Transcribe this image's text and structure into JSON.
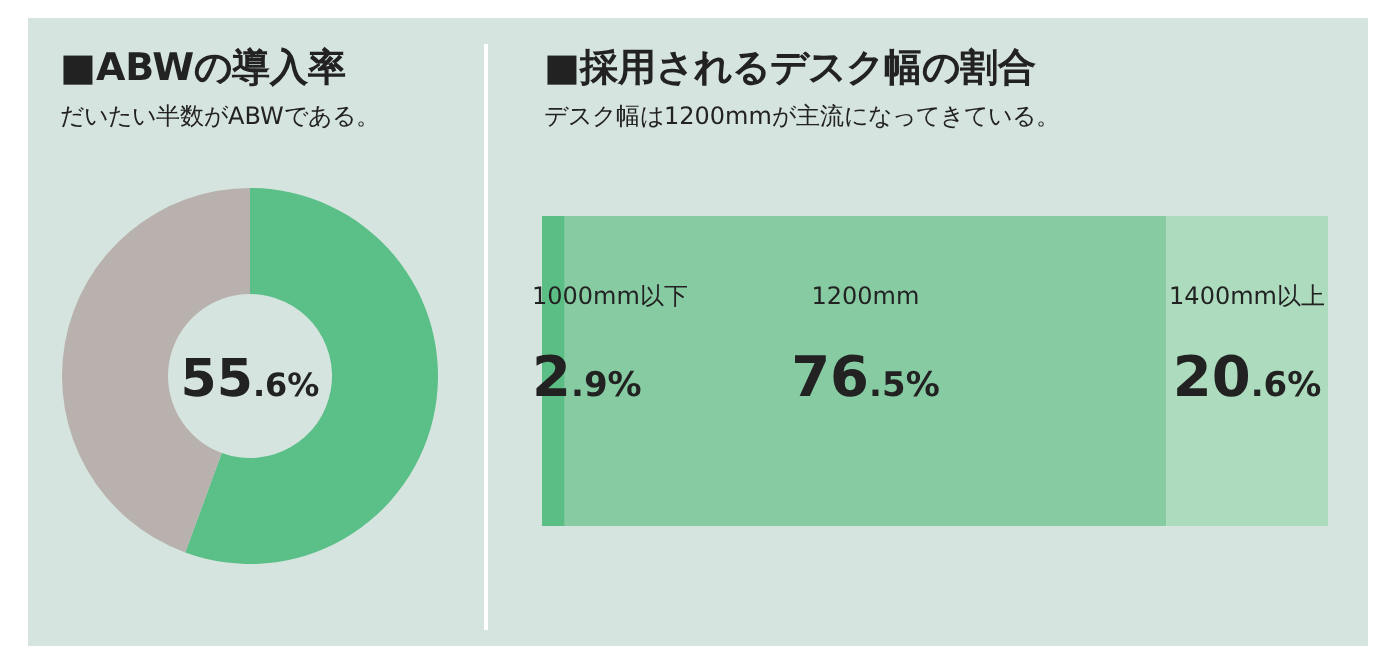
{
  "chart_data": [
    {
      "type": "donut",
      "title": "■ABWの導入率",
      "subtitle": "だいたい半数がABWである。",
      "categories": [
        null,
        null
      ],
      "values": [
        55.6,
        44.4
      ],
      "colors": [
        "#5bbf88",
        "#b8b1ae"
      ],
      "value_labels": [
        "55.6%",
        null
      ]
    },
    {
      "type": "bar",
      "title": "■採用されるデスク幅の割合",
      "subtitle": "デスク幅は1200mmが主流になってきている。",
      "orientation": "horizontal",
      "stacked": true,
      "categories": [
        null
      ],
      "series": [
        {
          "name": "1000mm以下",
          "color": "#5bbf85",
          "values": [
            2.9
          ],
          "value_labels": [
            "2.9%"
          ]
        },
        {
          "name": "1200mm",
          "color": "#86cba2",
          "values": [
            76.5
          ],
          "value_labels": [
            "76.5%"
          ]
        },
        {
          "name": "1400mm以上",
          "color": "#acdbbd",
          "values": [
            20.6
          ],
          "value_labels": [
            "20.6%"
          ]
        }
      ]
    }
  ]
}
